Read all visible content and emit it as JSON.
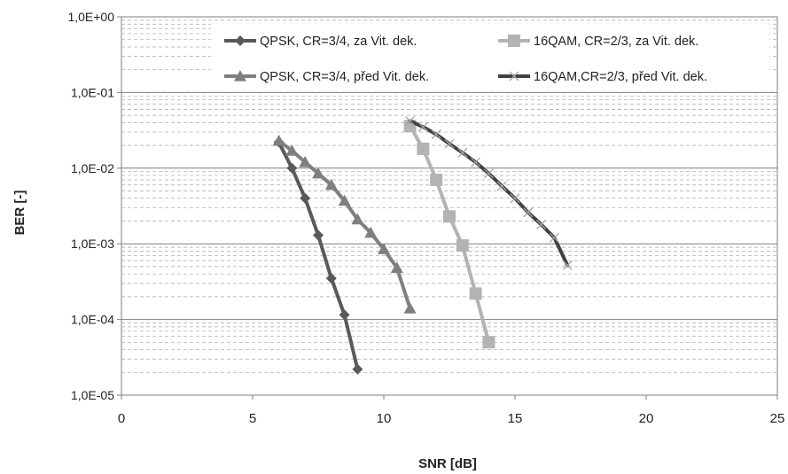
{
  "chart_data": {
    "type": "line",
    "title": "",
    "xlabel": "SNR [dB]",
    "ylabel": "BER [-]",
    "xlim": [
      0,
      25
    ],
    "ylim": [
      1e-05,
      1
    ],
    "y_scale": "log",
    "x_ticks": [
      0,
      5,
      10,
      15,
      20,
      25
    ],
    "x_tick_labels": [
      "0",
      "5",
      "10",
      "15",
      "20",
      "25"
    ],
    "y_ticks": [
      1e-05,
      0.0001,
      0.001,
      0.01,
      0.1,
      1
    ],
    "y_tick_labels": [
      "1,0E-05",
      "1,0E-04",
      "1,0E-03",
      "1,0E-02",
      "1,0E-01",
      "1,0E+00"
    ],
    "grid": {
      "major": true,
      "minor": true
    },
    "legend": "top",
    "series": [
      {
        "name": "QPSK, CR=3/4, za Vit. dek.",
        "marker": "diamond",
        "color": "#595959",
        "x": [
          6,
          6.5,
          7,
          7.5,
          8,
          8.5,
          9
        ],
        "y": [
          0.022,
          0.01,
          0.004,
          0.0013,
          0.00035,
          0.000115,
          2.2e-05
        ]
      },
      {
        "name": "16QAM, CR=2/3, za Vit. dek.",
        "marker": "square",
        "color": "#b3b3b3",
        "x": [
          11,
          11.5,
          12,
          12.5,
          13,
          13.5,
          14
        ],
        "y": [
          0.036,
          0.018,
          0.007,
          0.0023,
          0.00095,
          0.00022,
          5e-05
        ]
      },
      {
        "name": "QPSK, CR=3/4, před Vit. dek.",
        "marker": "triangle",
        "color": "#7f7f7f",
        "x": [
          6,
          6.5,
          7,
          7.5,
          8,
          8.5,
          9,
          9.5,
          10,
          10.5,
          11
        ],
        "y": [
          0.023,
          0.017,
          0.012,
          0.0085,
          0.006,
          0.0037,
          0.0021,
          0.0014,
          0.00085,
          0.00048,
          0.00014
        ]
      },
      {
        "name": "16QAM,CR=2/3, před Vit. dek.",
        "marker": "x",
        "color": "#404040",
        "x": [
          11,
          11.5,
          12,
          12.5,
          13,
          13.5,
          14,
          14.5,
          15,
          15.5,
          16,
          16.5,
          17
        ],
        "y": [
          0.042,
          0.035,
          0.028,
          0.021,
          0.016,
          0.012,
          0.0085,
          0.0058,
          0.004,
          0.0026,
          0.0018,
          0.0012,
          0.00052
        ]
      }
    ]
  }
}
